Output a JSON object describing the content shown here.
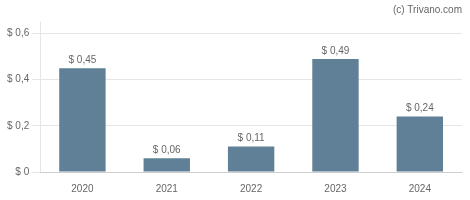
{
  "chart_data": {
    "type": "bar",
    "categories": [
      "2020",
      "2021",
      "2022",
      "2023",
      "2024"
    ],
    "values": [
      0.45,
      0.06,
      0.11,
      0.49,
      0.24
    ],
    "value_labels": [
      "$ 0,45",
      "$ 0,06",
      "$ 0,11",
      "$ 0,49",
      "$ 0,24"
    ],
    "data_labels": true,
    "color": "#5f8096",
    "ylim": [
      0,
      0.65
    ],
    "yticks": [
      {
        "value": 0.0,
        "label": "$ 0"
      },
      {
        "value": 0.2,
        "label": "$ 0,2"
      },
      {
        "value": 0.4,
        "label": "$ 0,4"
      },
      {
        "value": 0.6,
        "label": "$ 0,6"
      }
    ],
    "grid": true,
    "annotations": [
      "(c) Trivano.com"
    ]
  }
}
